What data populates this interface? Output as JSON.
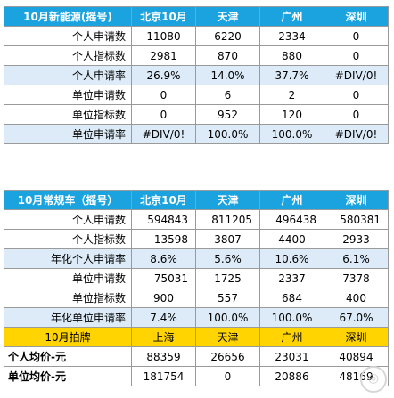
{
  "table1": {
    "headers": [
      "10月新能源(摇号)",
      "北京10月",
      "天津",
      "广州",
      "深圳"
    ],
    "rows": [
      {
        "label": "个人申请数",
        "values": [
          "11080",
          "6220",
          "2334",
          "0"
        ]
      },
      {
        "label": "个人指标数",
        "values": [
          "2981",
          "870",
          "880",
          "0"
        ]
      },
      {
        "label": "个人申请率",
        "values": [
          "26.9%",
          "14.0%",
          "37.7%",
          "#DIV/0!"
        ]
      },
      {
        "label": "单位申请数",
        "values": [
          "0",
          "6",
          "2",
          "0"
        ]
      },
      {
        "label": "单位指标数",
        "values": [
          "0",
          "952",
          "120",
          "0"
        ]
      },
      {
        "label": "单位申请率",
        "values": [
          "#DIV/0!",
          "100.0%",
          "100.0%",
          "#DIV/0!"
        ]
      }
    ]
  },
  "table2": {
    "headers": [
      "10月常规车（摇号）",
      "北京10月",
      "天津",
      "广州",
      "深圳"
    ],
    "rows": [
      {
        "label": "个人申请数",
        "values": [
          "594843",
          "811205",
          "496438",
          "580381"
        ]
      },
      {
        "label": "个人指标数",
        "values": [
          "13598",
          "3807",
          "4400",
          "2933"
        ]
      },
      {
        "label": "年化个人申请率",
        "values": [
          "8.6%",
          "5.6%",
          "10.6%",
          "6.1%"
        ]
      },
      {
        "label": "单位申请数",
        "values": [
          "75031",
          "1725",
          "2337",
          "7378"
        ]
      },
      {
        "label": "单位指标数",
        "values": [
          "900",
          "557",
          "684",
          "400"
        ]
      },
      {
        "label": "年化单位申请率",
        "values": [
          "7.4%",
          "100.0%",
          "100.0%",
          "67.0%"
        ]
      }
    ]
  },
  "table3": {
    "headers": [
      "10月拍牌",
      "上海",
      "天津",
      "广州",
      "深圳"
    ],
    "rows": [
      {
        "label": "个人均价-元",
        "values": [
          "88359",
          "26656",
          "23031",
          "40894"
        ]
      },
      {
        "label": "单位均价-元",
        "values": [
          "181754",
          "0",
          "20886",
          "48169"
        ]
      }
    ]
  },
  "colors": {
    "header_blue": "#1aa3df",
    "band_blue": "#dcebf7",
    "gold": "#ffd400"
  }
}
